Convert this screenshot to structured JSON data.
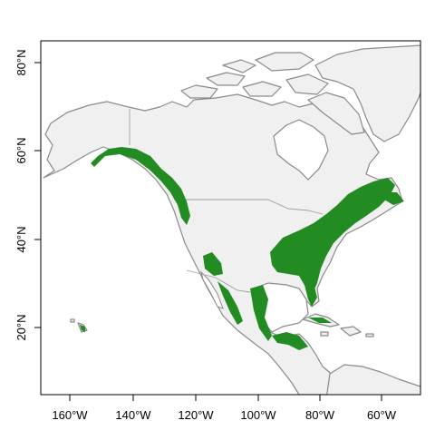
{
  "map": {
    "x_ticks": [
      "160°W",
      "140°W",
      "120°W",
      "100°W",
      "80°W",
      "60°W"
    ],
    "y_ticks": [
      "80°N",
      "60°N",
      "40°N",
      "20°N"
    ],
    "x_tick_values": [
      -160,
      -140,
      -120,
      -100,
      -80,
      -60
    ],
    "y_tick_values": [
      80,
      60,
      40,
      20
    ],
    "extent": {
      "lon": [
        -168,
        -48
      ],
      "lat": [
        5,
        85
      ]
    },
    "colors": {
      "land": "#f0f0f0",
      "coast": "#8a8a8a",
      "range": "#228b22",
      "frame": "#000000"
    }
  }
}
